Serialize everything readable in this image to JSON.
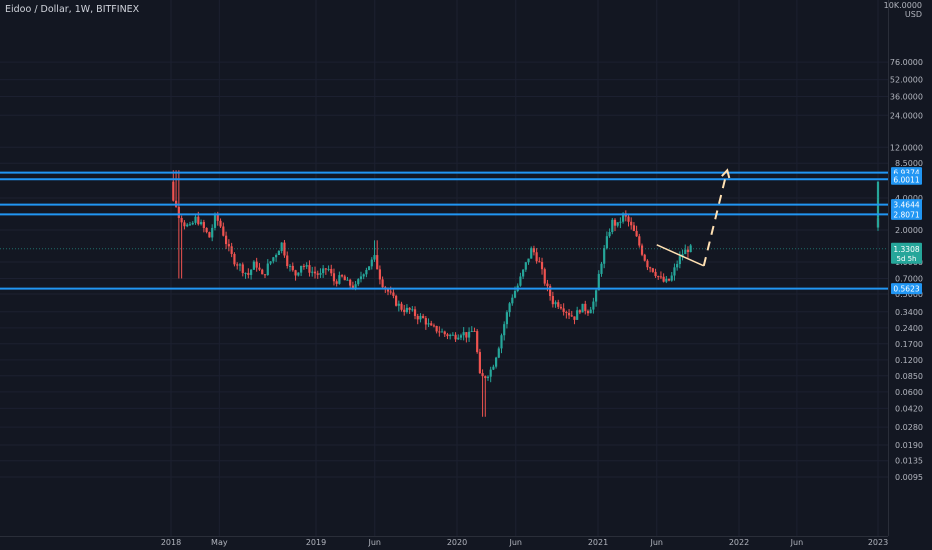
{
  "header": {
    "title": "Eidoo / Dollar, 1W, BITFINEX"
  },
  "chart_data": {
    "type": "candlestick",
    "title": "Eidoo / Dollar, 1W, BITFINEX",
    "y_scale": "log",
    "currency": "USD",
    "currency_top": "10K.0000",
    "y_ticks": [
      "76.0000",
      "52.0000",
      "36.0000",
      "24.0000",
      "12.0000",
      "8.5000",
      "4.0000",
      "2.0000",
      "1.0000",
      "0.7000",
      "0.5000",
      "0.3400",
      "0.2400",
      "0.1700",
      "0.1200",
      "0.0850",
      "0.0600",
      "0.0420",
      "0.0280",
      "0.0190",
      "0.0135",
      "0.0095"
    ],
    "x_ticks": [
      "2018",
      "May",
      "2019",
      "Jun",
      "2020",
      "Jun",
      "2021",
      "Jun",
      "2022",
      "Jun",
      "2023"
    ],
    "horizontal_levels": [
      6.9374,
      6.0011,
      3.4644,
      2.8071,
      0.5623
    ],
    "level_labels": [
      "6.9374",
      "6.0011",
      "3.4644",
      "2.8071",
      "0.5623"
    ],
    "last_price": 1.3308,
    "last_price_label": "1.3308",
    "countdown": "5d 5h",
    "trendline": {
      "from": [
        "2021-06",
        1.45
      ],
      "to": [
        "2021-10",
        0.92
      ]
    },
    "projection": [
      [
        "2021-10",
        0.92
      ],
      [
        "2021-12",
        7.3
      ]
    ],
    "colors": {
      "up": "#26a69a",
      "down": "#ef5350",
      "level": "#2196f3",
      "trend": "#ffe0b2",
      "last": "#26a69a"
    },
    "candles": []
  }
}
